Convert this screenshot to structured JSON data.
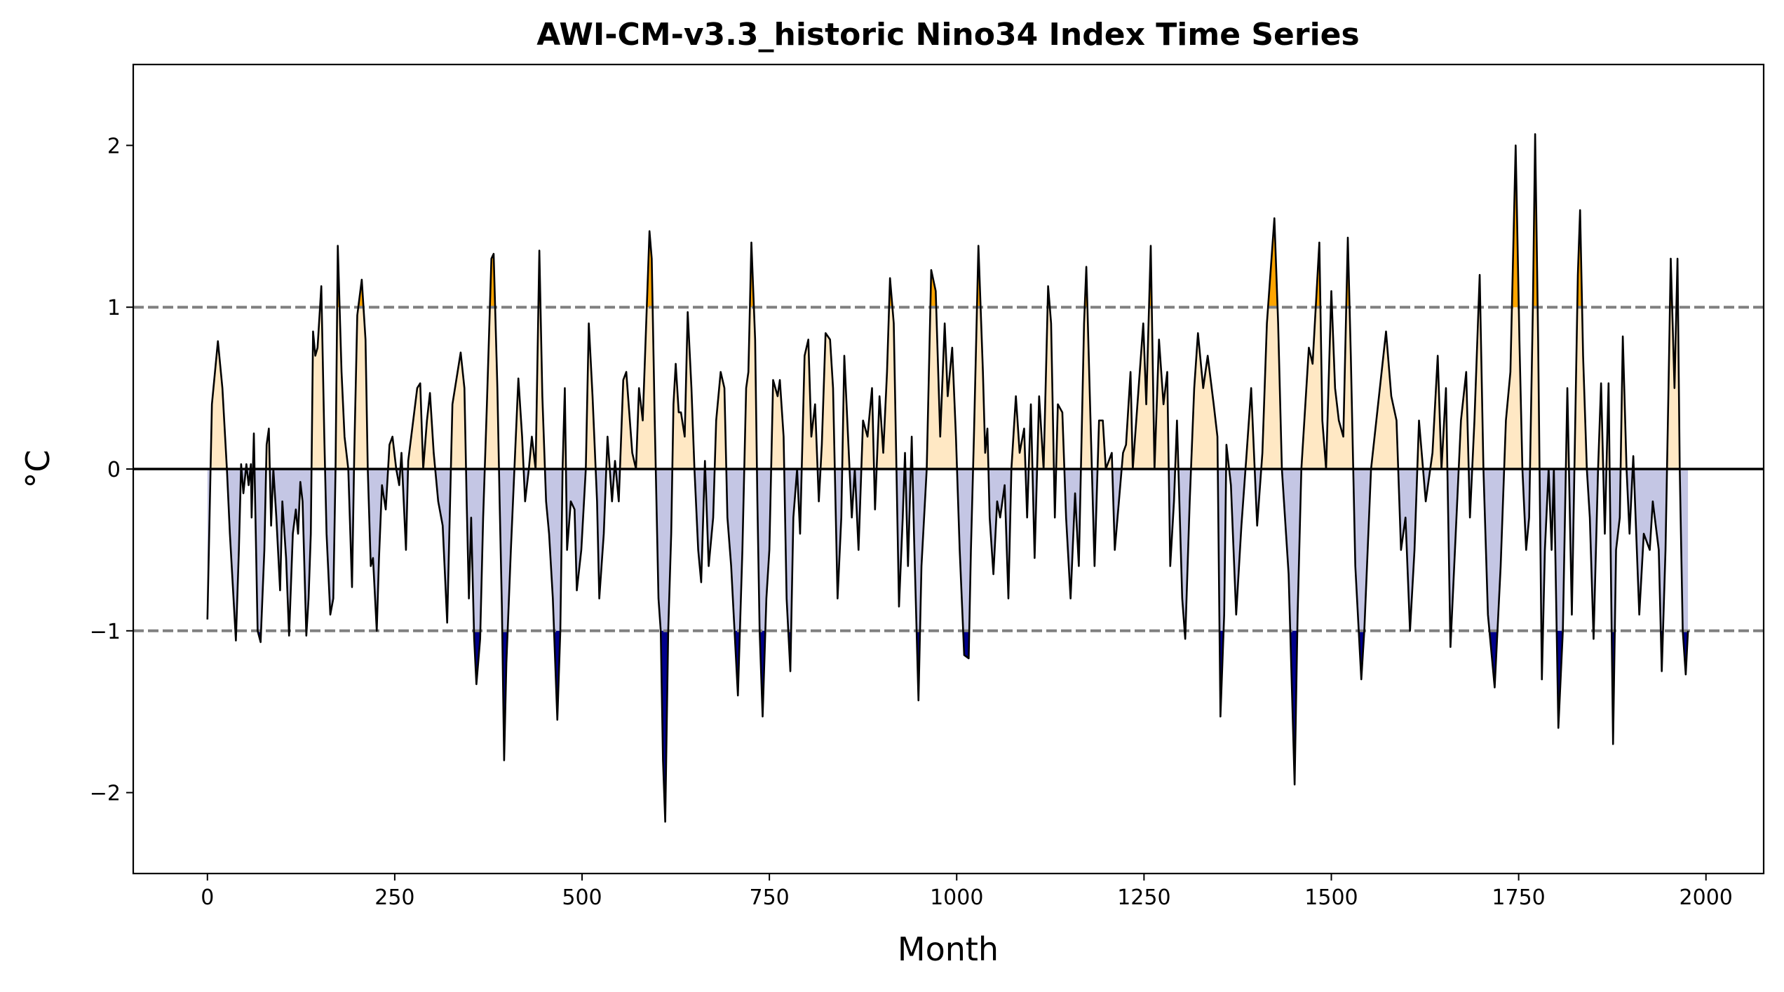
{
  "chart_data": {
    "type": "line",
    "title": "AWI-CM-v3.3_historic Nino34 Index Time Series",
    "xlabel": "Month",
    "ylabel": "°C",
    "x": [
      0,
      6,
      14,
      20,
      26,
      30,
      38,
      42,
      45,
      48,
      52,
      55,
      58,
      59,
      62,
      67,
      71,
      76,
      79,
      82,
      85,
      88,
      92,
      97,
      100,
      105,
      109,
      114,
      118,
      121,
      124,
      127,
      132,
      135,
      138,
      141,
      144,
      147,
      152,
      156,
      159,
      164,
      168,
      171,
      174,
      179,
      183,
      188,
      193,
      196,
      200,
      206,
      211,
      214,
      218,
      221,
      226,
      229,
      233,
      238,
      243,
      247,
      252,
      256,
      259,
      265,
      268,
      280,
      284,
      288,
      293,
      297,
      302,
      308,
      314,
      320,
      327,
      338,
      343,
      346,
      349,
      352,
      356,
      359,
      364,
      368,
      373,
      379,
      382,
      387,
      390,
      393,
      396,
      399,
      405,
      415,
      420,
      424,
      429,
      433,
      438,
      443,
      447,
      452,
      456,
      461,
      467,
      471,
      474,
      477,
      480,
      485,
      490,
      493,
      499,
      505,
      509,
      514,
      520,
      523,
      529,
      534,
      540,
      544,
      549,
      555,
      559,
      567,
      572,
      576,
      581,
      590,
      593,
      597,
      602,
      605,
      608,
      611,
      615,
      619,
      622,
      625,
      629,
      632,
      637,
      641,
      646,
      650,
      655,
      659,
      664,
      669,
      675,
      679,
      685,
      690,
      694,
      699,
      708,
      714,
      719,
      722,
      726,
      731,
      734,
      737,
      741,
      746,
      750,
      755,
      761,
      764,
      769,
      773,
      778,
      782,
      787,
      791,
      797,
      802,
      806,
      811,
      816,
      820,
      825,
      831,
      835,
      841,
      846,
      850,
      855,
      860,
      864,
      869,
      875,
      881,
      887,
      891,
      897,
      902,
      907,
      911,
      916,
      920,
      923,
      928,
      931,
      935,
      940,
      943,
      949,
      953,
      960,
      966,
      972,
      978,
      984,
      988,
      994,
      999,
      1004,
      1010,
      1016,
      1019,
      1023,
      1029,
      1035,
      1038,
      1041,
      1044,
      1049,
      1054,
      1058,
      1064,
      1069,
      1073,
      1079,
      1084,
      1090,
      1094,
      1099,
      1104,
      1110,
      1116,
      1122,
      1126,
      1131,
      1135,
      1141,
      1146,
      1152,
      1158,
      1163,
      1170,
      1173,
      1178,
      1184,
      1190,
      1195,
      1199,
      1207,
      1211,
      1222,
      1226,
      1232,
      1235,
      1249,
      1253,
      1259,
      1264,
      1270,
      1276,
      1281,
      1285,
      1290,
      1294,
      1301,
      1305,
      1311,
      1317,
      1322,
      1329,
      1335,
      1343,
      1348,
      1352,
      1357,
      1360,
      1366,
      1373,
      1380,
      1387,
      1393,
      1401,
      1408,
      1414,
      1424,
      1429,
      1434,
      1443,
      1451,
      1455,
      1460,
      1470,
      1475,
      1484,
      1488,
      1493,
      1500,
      1505,
      1510,
      1516,
      1522,
      1526,
      1532,
      1540,
      1544,
      1553,
      1573,
      1580,
      1587,
      1593,
      1599,
      1605,
      1611,
      1617,
      1626,
      1635,
      1642,
      1647,
      1653,
      1659,
      1665,
      1673,
      1680,
      1685,
      1691,
      1698,
      1703,
      1709,
      1718,
      1726,
      1733,
      1739,
      1746,
      1751,
      1755,
      1760,
      1764,
      1769,
      1772,
      1776,
      1781,
      1785,
      1790,
      1794,
      1797,
      1803,
      1809,
      1815,
      1821,
      1829,
      1832,
      1836,
      1841,
      1845,
      1850,
      1856,
      1860,
      1865,
      1870,
      1876,
      1880,
      1885,
      1889,
      1894,
      1898,
      1903,
      1911,
      1917,
      1925,
      1929,
      1937,
      1941,
      1946,
      1950,
      1953,
      1958,
      1962,
      1965,
      1969,
      1973,
      1976
    ],
    "values": [
      -0.93,
      0.4,
      0.79,
      0.5,
      0,
      -0.4,
      -1.06,
      -0.5,
      0.03,
      -0.15,
      0.03,
      -0.1,
      0.03,
      -0.3,
      0.22,
      -1.0,
      -1.07,
      -0.5,
      0.15,
      0.25,
      -0.35,
      0,
      -0.3,
      -0.75,
      -0.2,
      -0.55,
      -1.03,
      -0.4,
      -0.25,
      -0.4,
      -0.08,
      -0.2,
      -1.03,
      -0.8,
      -0.4,
      0.85,
      0.7,
      0.75,
      1.13,
      0.2,
      -0.4,
      -0.9,
      -0.8,
      0,
      1.38,
      0.6,
      0.2,
      0,
      -0.73,
      0.1,
      0.95,
      1.17,
      0.8,
      0,
      -0.6,
      -0.55,
      -1.0,
      -0.55,
      -0.1,
      -0.25,
      0.15,
      0.2,
      0,
      -0.1,
      0.1,
      -0.5,
      0.05,
      0.5,
      0.53,
      0,
      0.3,
      0.47,
      0.1,
      -0.2,
      -0.35,
      -0.95,
      0.4,
      0.72,
      0.5,
      -0.2,
      -0.8,
      -0.3,
      -1.05,
      -1.33,
      -1.05,
      -0.3,
      0.4,
      1.3,
      1.33,
      0.5,
      -0.2,
      -0.85,
      -1.8,
      -1.2,
      -0.5,
      0.56,
      0.2,
      -0.2,
      0,
      0.2,
      0,
      1.35,
      0.45,
      -0.2,
      -0.4,
      -0.8,
      -1.55,
      -1.0,
      0,
      0.5,
      -0.5,
      -0.2,
      -0.25,
      -0.75,
      -0.5,
      0,
      0.9,
      0.45,
      -0.2,
      -0.8,
      -0.4,
      0.2,
      -0.2,
      0.05,
      -0.2,
      0.55,
      0.6,
      0.1,
      0,
      0.5,
      0.3,
      1.47,
      1.3,
      0.3,
      -0.8,
      -1.0,
      -1.8,
      -2.18,
      -1.0,
      -0.4,
      0.4,
      0.65,
      0.35,
      0.35,
      0.2,
      0.97,
      0.5,
      0,
      -0.5,
      -0.7,
      0.05,
      -0.6,
      -0.3,
      0.3,
      0.6,
      0.5,
      -0.3,
      -0.6,
      -1.4,
      -0.5,
      0.5,
      0.6,
      1.4,
      0.8,
      -0.2,
      -1.0,
      -1.53,
      -0.8,
      -0.5,
      0.55,
      0.45,
      0.55,
      0.2,
      -0.8,
      -1.25,
      -0.3,
      0,
      -0.4,
      0.7,
      0.8,
      0.2,
      0.4,
      -0.2,
      0.15,
      0.84,
      0.8,
      0.5,
      -0.8,
      -0.3,
      0.7,
      0.2,
      -0.3,
      0,
      -0.5,
      0.3,
      0.2,
      0.5,
      -0.25,
      0.45,
      0.1,
      0.6,
      1.18,
      0.9,
      -0.1,
      -0.85,
      -0.3,
      0.1,
      -0.6,
      0.2,
      -0.4,
      -1.43,
      -0.6,
      0,
      1.23,
      1.1,
      0.2,
      0.9,
      0.45,
      0.75,
      0.2,
      -0.5,
      -1.15,
      -1.17,
      -0.5,
      0.2,
      1.38,
      0.6,
      0.1,
      0.25,
      -0.3,
      -0.65,
      -0.2,
      -0.3,
      -0.1,
      -0.8,
      0,
      0.45,
      0.1,
      0.25,
      -0.3,
      0.4,
      -0.55,
      0.45,
      0,
      1.13,
      0.9,
      -0.3,
      0.4,
      0.35,
      -0.3,
      -0.8,
      -0.15,
      -0.6,
      0.9,
      1.25,
      0.4,
      -0.6,
      0.3,
      0.3,
      0,
      0.1,
      -0.5,
      0.1,
      0.15,
      0.6,
      0,
      0.9,
      0.4,
      1.38,
      0,
      0.8,
      0.4,
      0.6,
      -0.6,
      -0.2,
      0.3,
      -0.8,
      -1.05,
      -0.2,
      0.5,
      0.84,
      0.5,
      0.7,
      0.4,
      0.2,
      -1.53,
      -0.9,
      0.15,
      -0.1,
      -0.9,
      -0.35,
      0.1,
      0.5,
      -0.35,
      0.1,
      0.9,
      1.55,
      0.9,
      0,
      -0.65,
      -1.95,
      -0.9,
      0,
      0.75,
      0.65,
      1.4,
      0.3,
      0,
      1.1,
      0.5,
      0.3,
      0.2,
      1.43,
      0.7,
      -0.6,
      -1.3,
      -1.0,
      0,
      0.85,
      0.45,
      0.3,
      -0.5,
      -0.3,
      -1.0,
      -0.5,
      0.3,
      -0.2,
      0.1,
      0.7,
      0,
      0.5,
      -1.1,
      -0.5,
      0.3,
      0.6,
      -0.3,
      0.3,
      1.2,
      0,
      -0.9,
      -1.35,
      -0.6,
      0.3,
      0.6,
      2.0,
      0.8,
      0,
      -0.5,
      -0.3,
      1.0,
      2.07,
      0.8,
      -1.3,
      -0.5,
      0,
      -0.5,
      0,
      -1.6,
      -1.0,
      0.5,
      -0.9,
      1.2,
      1.6,
      0.7,
      0,
      -0.3,
      -1.05,
      0,
      0.53,
      -0.4,
      0.53,
      -1.7,
      -0.5,
      -0.3,
      0.82,
      0,
      -0.4,
      0.08,
      -0.9,
      -0.4,
      -0.5,
      -0.2,
      -0.5,
      -1.25,
      -0.5,
      0.5,
      1.3,
      0.5,
      1.3,
      0,
      -1.0,
      -1.27,
      -1.0
    ],
    "xlim": [
      -99,
      2077
    ],
    "ylim": [
      -2.5,
      2.5
    ],
    "xticks": [
      0,
      250,
      500,
      750,
      1000,
      1250,
      1500,
      1750,
      2000
    ],
    "yticks": [
      {
        "value": -2,
        "label": "−2"
      },
      {
        "value": -1,
        "label": "−1"
      },
      0,
      1,
      2
    ],
    "zero_line": 0,
    "threshold_lines": [
      -1,
      1
    ],
    "colors": {
      "line": "#000000",
      "warm": "#ffa500",
      "warm_light": "#ffe8c4",
      "cool": "#00008b",
      "cool_light": "#c4c6e4",
      "threshold": "#808080"
    }
  }
}
